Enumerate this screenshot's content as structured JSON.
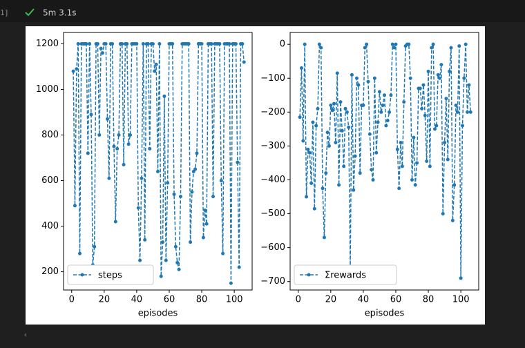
{
  "cell": {
    "prompt": "1]",
    "duration": "5m 3.1s"
  },
  "chart_data": [
    {
      "type": "line",
      "xlabel": "episodes",
      "legend": "lower left",
      "marker": true,
      "linestyle": "dashed",
      "x": [
        1,
        2,
        3,
        4,
        5,
        6,
        7,
        8,
        9,
        10,
        11,
        12,
        13,
        14,
        15,
        16,
        17,
        18,
        19,
        20,
        21,
        22,
        23,
        24,
        25,
        26,
        27,
        28,
        29,
        30,
        31,
        32,
        33,
        34,
        35,
        36,
        37,
        38,
        39,
        40,
        41,
        42,
        43,
        44,
        45,
        46,
        47,
        48,
        49,
        50,
        51,
        52,
        53,
        54,
        55,
        56,
        57,
        58,
        59,
        60,
        61,
        62,
        63,
        64,
        65,
        66,
        67,
        68,
        69,
        70,
        71,
        72,
        73,
        74,
        75,
        76,
        77,
        78,
        79,
        80,
        81,
        82,
        83,
        84,
        85,
        86,
        87,
        88,
        89,
        90,
        91,
        92,
        93,
        94,
        95,
        96,
        97,
        98,
        99,
        100,
        101,
        102,
        103,
        104,
        105,
        106
      ],
      "series": [
        {
          "name": "steps",
          "color": "#1f77b4",
          "values": [
            1080,
            490,
            1090,
            1200,
            280,
            1200,
            1200,
            1200,
            1200,
            720,
            1200,
            890,
            230,
            310,
            1200,
            1200,
            800,
            1180,
            1160,
            1200,
            1200,
            870,
            610,
            1200,
            1200,
            750,
            420,
            740,
            800,
            1200,
            1200,
            670,
            1200,
            1200,
            760,
            800,
            1200,
            1200,
            1200,
            1200,
            480,
            250,
            610,
            1200,
            340,
            1200,
            1200,
            740,
            1200,
            1200,
            1080,
            1110,
            640,
            1200,
            180,
            330,
            970,
            250,
            590,
            1200,
            1200,
            1200,
            540,
            310,
            240,
            210,
            530,
            1200,
            1200,
            1200,
            1200,
            1200,
            330,
            550,
            640,
            650,
            720,
            1200,
            1200,
            1200,
            350,
            470,
            410,
            1200,
            1200,
            1200,
            530,
            1200,
            1200,
            1200,
            1200,
            600,
            280,
            1200,
            1200,
            1200,
            1200,
            150,
            1200,
            1200,
            1200,
            680,
            220,
            1200,
            1200,
            1120
          ]
        }
      ],
      "xlim": [
        -5,
        111
      ],
      "ylim": [
        120,
        1250
      ],
      "xticks": [
        0,
        20,
        40,
        60,
        80,
        100
      ],
      "yticks": [
        200,
        400,
        600,
        800,
        1000,
        1200
      ]
    },
    {
      "type": "line",
      "xlabel": "episodes",
      "legend": "lower left",
      "marker": true,
      "linestyle": "dashed",
      "x": [
        1,
        2,
        3,
        4,
        5,
        6,
        7,
        8,
        9,
        10,
        11,
        12,
        13,
        14,
        15,
        16,
        17,
        18,
        19,
        20,
        21,
        22,
        23,
        24,
        25,
        26,
        27,
        28,
        29,
        30,
        31,
        32,
        33,
        34,
        35,
        36,
        37,
        38,
        39,
        40,
        41,
        42,
        43,
        44,
        45,
        46,
        47,
        48,
        49,
        50,
        51,
        52,
        53,
        54,
        55,
        56,
        57,
        58,
        59,
        60,
        61,
        62,
        63,
        64,
        65,
        66,
        67,
        68,
        69,
        70,
        71,
        72,
        73,
        74,
        75,
        76,
        77,
        78,
        79,
        80,
        81,
        82,
        83,
        84,
        85,
        86,
        87,
        88,
        89,
        90,
        91,
        92,
        93,
        94,
        95,
        96,
        97,
        98,
        99,
        100,
        101,
        102,
        103,
        104,
        105,
        106
      ],
      "series": [
        {
          "name": "Σrewards",
          "color": "#1f77b4",
          "values": [
            -215,
            -70,
            -285,
            0,
            -450,
            -310,
            -320,
            -410,
            -230,
            -485,
            -240,
            -190,
            0,
            -10,
            -425,
            -570,
            -380,
            -260,
            -300,
            -180,
            -195,
            -175,
            -290,
            -85,
            -415,
            -170,
            -255,
            -360,
            -190,
            -200,
            -245,
            -660,
            -90,
            -430,
            -330,
            -100,
            -120,
            -380,
            -180,
            -180,
            -10,
            0,
            -110,
            -265,
            -370,
            -400,
            -100,
            -320,
            -230,
            -140,
            -200,
            -180,
            -150,
            -240,
            -225,
            -200,
            -150,
            0,
            -10,
            0,
            -310,
            -425,
            -290,
            -360,
            -170,
            -5,
            0,
            0,
            -100,
            -400,
            -275,
            -415,
            -350,
            -130,
            -130,
            -190,
            -120,
            -210,
            -345,
            -80,
            -360,
            -10,
            0,
            -250,
            -240,
            -90,
            -100,
            -60,
            -500,
            -290,
            -160,
            -340,
            -80,
            -10,
            -520,
            -415,
            -180,
            -200,
            -5,
            -690,
            -240,
            -100,
            0,
            -200,
            -120,
            -200
          ]
        }
      ],
      "xlim": [
        -5,
        111
      ],
      "ylim": [
        -725,
        35
      ],
      "xticks": [
        0,
        20,
        40,
        60,
        80,
        100
      ],
      "yticks": [
        {
          "value": -700,
          "label": "−700"
        },
        {
          "value": -600,
          "label": "−600"
        },
        {
          "value": -500,
          "label": "−500"
        },
        {
          "value": -400,
          "label": "−400"
        },
        {
          "value": -300,
          "label": "−300"
        },
        {
          "value": -200,
          "label": "−200"
        },
        {
          "value": -100,
          "label": "−100"
        },
        0
      ]
    }
  ]
}
